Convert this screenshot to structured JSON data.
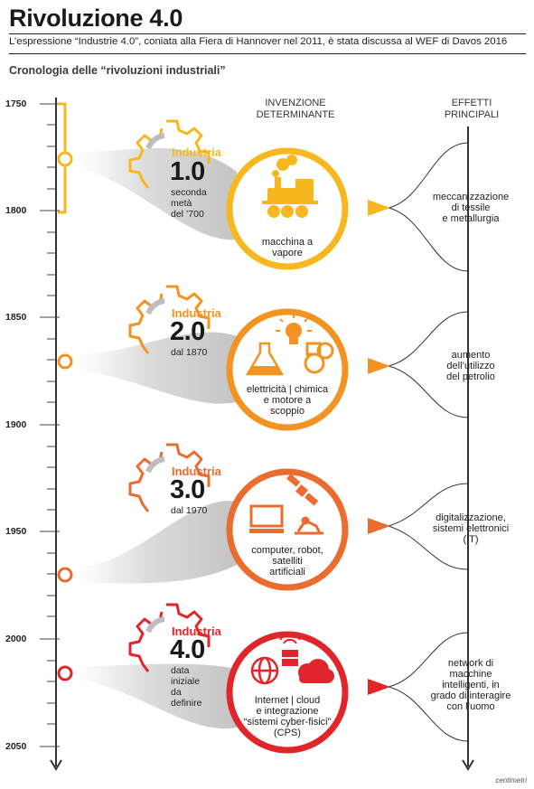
{
  "title": "Rivoluzione 4.0",
  "subtitle": "L’espressione “Industrie 4.0”, coniata alla Fiera di Hannover nel 2011, è stata discussa al WEF di Davos 2016",
  "section_title": "Cronologia delle “rivoluzioni industriali”",
  "columns": {
    "invention": [
      "INVENZIONE",
      "DETERMINANTE"
    ],
    "effects": [
      "EFFETTI",
      "PRINCIPALI"
    ]
  },
  "years": [
    "1750",
    "1800",
    "1850",
    "1900",
    "1950",
    "2000",
    "2050"
  ],
  "revolutions": [
    {
      "label": "Industria",
      "number": "1.0",
      "date": [
        "seconda",
        "metà",
        "del ’700"
      ],
      "color": "#f6b81e",
      "invention": [
        "macchina a",
        "vapore"
      ],
      "effect": [
        "meccanizzazione",
        "di tessile",
        "e metallurgia"
      ]
    },
    {
      "label": "Industria",
      "number": "2.0",
      "date": [
        "dal 1870"
      ],
      "color": "#f39322",
      "invention": [
        "elettricità | chimica",
        "e motore a",
        "scoppio"
      ],
      "effect": [
        "aumento",
        "dell’utilizzo",
        "del petrolio"
      ]
    },
    {
      "label": "Industria",
      "number": "3.0",
      "date": [
        "dal 1970"
      ],
      "color": "#ea6c2e",
      "invention": [
        "computer, robot,",
        "satelliti",
        "artificiali"
      ],
      "effect": [
        "digitalizzazione,",
        "sistemi elettronici",
        "(IT)"
      ]
    },
    {
      "label": "Industria",
      "number": "4.0",
      "date": [
        "data",
        "iniziale",
        "da",
        "definire"
      ],
      "color": "#e0262b",
      "invention": [
        "Internet | cloud",
        "e integrazione",
        "“sistemi cyber-fisici”",
        "(CPS)"
      ],
      "effect": [
        "network di",
        "macchine",
        "intelligenti, in",
        "grado di interagire",
        "con l’uomo"
      ]
    }
  ],
  "credit": "centimetri",
  "icons": [
    "steam-locomotive-icon",
    "flask-icon",
    "light-bulb-icon",
    "engine-icon",
    "computer-icon",
    "satellite-icon",
    "robot-arm-icon",
    "globe-network-icon",
    "router-icon",
    "cloud-icon",
    "gear-icon"
  ]
}
